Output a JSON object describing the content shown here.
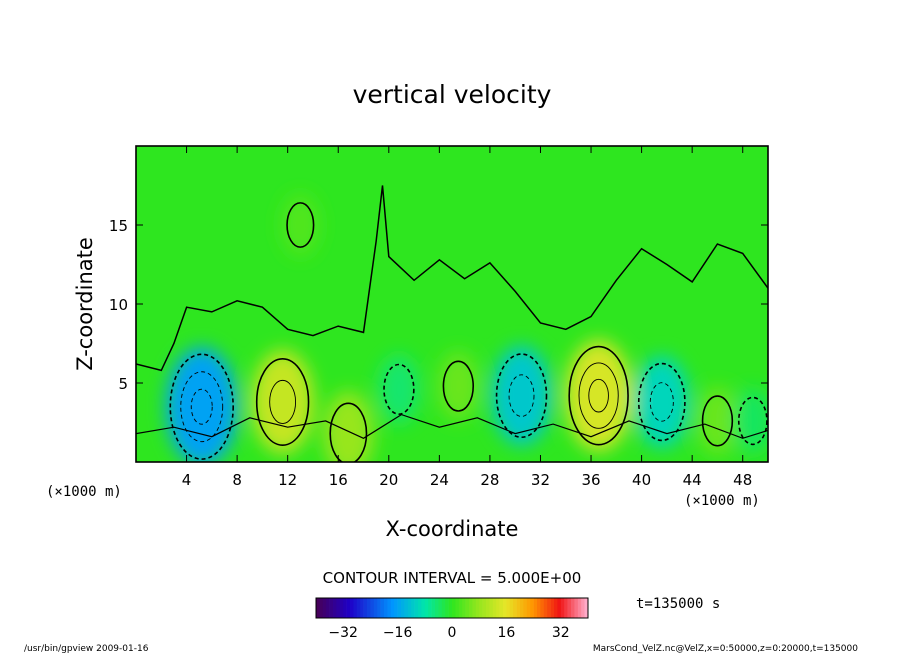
{
  "chart_data": {
    "type": "heatmap",
    "title": "vertical velocity",
    "xlabel": "X-coordinate",
    "ylabel": "Z-coordinate",
    "x_unit": "(×1000 m)",
    "x_unit_right": "(×1000 m)",
    "xlim": [
      0,
      50
    ],
    "ylim": [
      0,
      20
    ],
    "x_ticks": [
      4,
      8,
      12,
      16,
      20,
      24,
      28,
      32,
      36,
      40,
      44,
      48
    ],
    "y_ticks": [
      5,
      10,
      15
    ],
    "contour_interval": "CONTOUR INTERVAL = 5.000E+00",
    "time_label": "t=135000 s",
    "colorbar": {
      "min": -40,
      "max": 40,
      "ticks": [
        -32,
        -16,
        0,
        16,
        32
      ]
    },
    "features": [
      {
        "x": 5.2,
        "z": 3.5,
        "value": -18
      },
      {
        "x": 11.6,
        "z": 3.8,
        "value": 14
      },
      {
        "x": 16.8,
        "z": 1.8,
        "value": 9
      },
      {
        "x": 20.8,
        "z": 4.6,
        "value": -5
      },
      {
        "x": 25.5,
        "z": 4.8,
        "value": 5
      },
      {
        "x": 30.5,
        "z": 4.2,
        "value": -13
      },
      {
        "x": 36.6,
        "z": 4.2,
        "value": 16
      },
      {
        "x": 41.6,
        "z": 3.8,
        "value": -11
      },
      {
        "x": 46.0,
        "z": 2.6,
        "value": 5
      },
      {
        "x": 48.8,
        "z": 2.6,
        "value": -4
      },
      {
        "x": 13.0,
        "z": 15.0,
        "value": 3
      }
    ],
    "grid": false
  },
  "footer": {
    "left": "/usr/bin/gpview   2009-01-16",
    "right": "MarsCond_VelZ.nc@VelZ,x=0:50000,z=0:20000,t=135000"
  },
  "colors": {
    "background": "#2ee61f",
    "frame": "#000000"
  }
}
